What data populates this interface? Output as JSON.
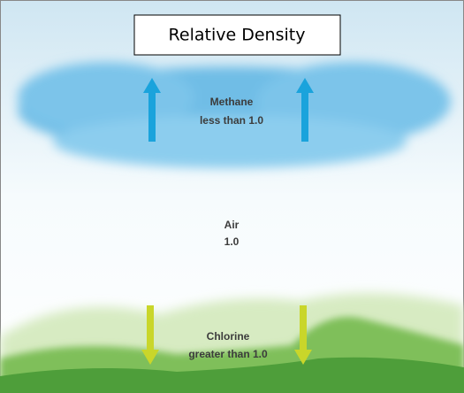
{
  "title": "Relative Density",
  "layers": [
    {
      "name": "Methane",
      "value": "less than 1.0"
    },
    {
      "name": "Air",
      "value": "1.0"
    },
    {
      "name": "Chlorine",
      "value": "greater than 1.0"
    }
  ]
}
